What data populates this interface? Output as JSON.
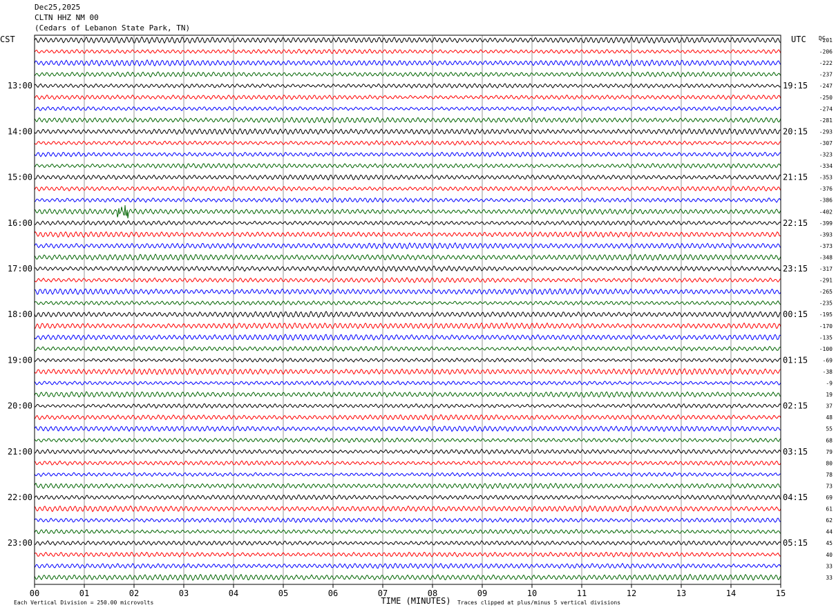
{
  "header": {
    "date": "Dec25,2025",
    "station": "CLTN HHZ NM 00",
    "location": "(Cedars of Lebanon State Park, TN)"
  },
  "left_axis_title": "CST",
  "right_axis_title": "UTC",
  "dc_title": "DC",
  "footer": {
    "vertical_division": "Each Vertical Division =  250.00 microvolts",
    "clipping": "Traces clipped at plus/minus 5 vertical divisions"
  },
  "chart_data": {
    "type": "line",
    "title": "CLTN HHZ NM 00",
    "xlabel": "TIME (MINUTES)",
    "ylabel": "",
    "x_range": [
      0,
      15
    ],
    "x_ticks": [
      "00",
      "01",
      "02",
      "03",
      "04",
      "05",
      "06",
      "07",
      "08",
      "09",
      "10",
      "11",
      "12",
      "13",
      "14",
      "15"
    ],
    "trace_minutes": 15,
    "trace_count": 48,
    "trace_colors": [
      "#000000",
      "#ff0000",
      "#0000ff",
      "#006400"
    ],
    "left_time_labels": [
      "13:00",
      "14:00",
      "15:00",
      "16:00",
      "17:00",
      "18:00",
      "19:00",
      "20:00",
      "21:00",
      "22:00",
      "23:00"
    ],
    "right_time_labels": [
      "19:15",
      "20:15",
      "21:15",
      "22:15",
      "23:15",
      "00:15",
      "01:15",
      "02:15",
      "03:15",
      "04:15",
      "05:15"
    ],
    "dc_offsets": [
      "-201",
      "-206",
      "-222",
      "-237",
      "-247",
      "-250",
      "-274",
      "-281",
      "-293",
      "-307",
      "-323",
      "-334",
      "-353",
      "-376",
      "-386",
      "-402",
      "-399",
      "-393",
      "-373",
      "-348",
      "-317",
      "-291",
      "-265",
      "-235",
      "-195",
      "-170",
      "-135",
      "-100",
      "-69",
      "-38",
      "-9",
      "19",
      "37",
      "48",
      "55",
      "68",
      "79",
      "80",
      "78",
      "73",
      "69",
      "61",
      "62",
      "44",
      "45",
      "40",
      "33",
      "33"
    ],
    "grid": true
  }
}
